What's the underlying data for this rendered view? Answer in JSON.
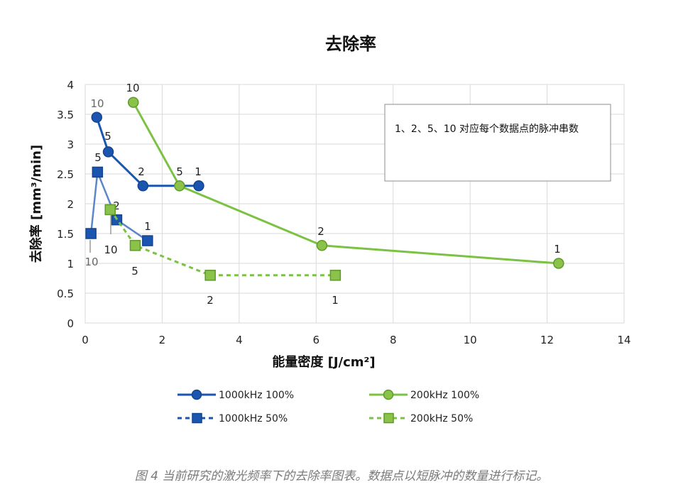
{
  "chart_data": {
    "type": "line",
    "title": "去除率",
    "xlabel": "能量密度 [J/cm²]",
    "ylabel": "去除率 [mm³/min]",
    "xlim": [
      0,
      14
    ],
    "ylim": [
      0,
      4
    ],
    "xticks": [
      0,
      2,
      4,
      6,
      8,
      10,
      12,
      14
    ],
    "xtick_labels": [
      "0",
      "2",
      "4",
      "6",
      "8",
      "10",
      "12",
      "14"
    ],
    "yticks": [
      0,
      0.5,
      1,
      1.5,
      2,
      2.5,
      3,
      3.5,
      4
    ],
    "ytick_labels": [
      "0",
      "0.5",
      "1",
      "1.5",
      "2",
      "2.5",
      "3",
      "3.5",
      "4"
    ],
    "grid": true,
    "legend_position": "bottom",
    "annotation": "1、2、5、10 对应每个数据点的脉冲串数",
    "series": [
      {
        "name": "1000kHz 100%",
        "color": "#1a56b0",
        "marker": "circle",
        "dash": "solid",
        "points": [
          {
            "x": 0.3,
            "y": 3.45,
            "label": "10"
          },
          {
            "x": 0.6,
            "y": 2.87,
            "label": "5"
          },
          {
            "x": 1.5,
            "y": 2.3,
            "label": "2"
          },
          {
            "x": 2.95,
            "y": 2.3,
            "label": "1"
          }
        ]
      },
      {
        "name": "200kHz 100%",
        "color": "#7cc242",
        "marker": "circle",
        "dash": "solid",
        "points": [
          {
            "x": 1.25,
            "y": 3.7,
            "label": "10"
          },
          {
            "x": 2.45,
            "y": 2.3,
            "label": "5"
          },
          {
            "x": 6.15,
            "y": 1.3,
            "label": "2"
          },
          {
            "x": 12.3,
            "y": 1.0,
            "label": "1"
          }
        ]
      },
      {
        "name": "1000kHz 50%",
        "color": "#1a56b0",
        "marker": "square",
        "dash": "dashed",
        "points": [
          {
            "x": 0.15,
            "y": 1.5,
            "label": "10"
          },
          {
            "x": 0.32,
            "y": 2.53,
            "label": "5"
          },
          {
            "x": 0.82,
            "y": 1.73,
            "label": "2"
          },
          {
            "x": 1.62,
            "y": 1.38,
            "label": "1"
          }
        ]
      },
      {
        "name": "200kHz 50%",
        "color": "#7cc242",
        "marker": "square",
        "dash": "dashed",
        "points": [
          {
            "x": 0.65,
            "y": 1.9,
            "label": "10"
          },
          {
            "x": 1.3,
            "y": 1.3,
            "label": "5"
          },
          {
            "x": 3.25,
            "y": 0.8,
            "label": "2"
          },
          {
            "x": 6.5,
            "y": 0.8,
            "label": "1"
          }
        ]
      }
    ]
  },
  "caption": "图 4 当前研究的激光频率下的去除率图表。数据点以短脉冲的数量进行标记。"
}
